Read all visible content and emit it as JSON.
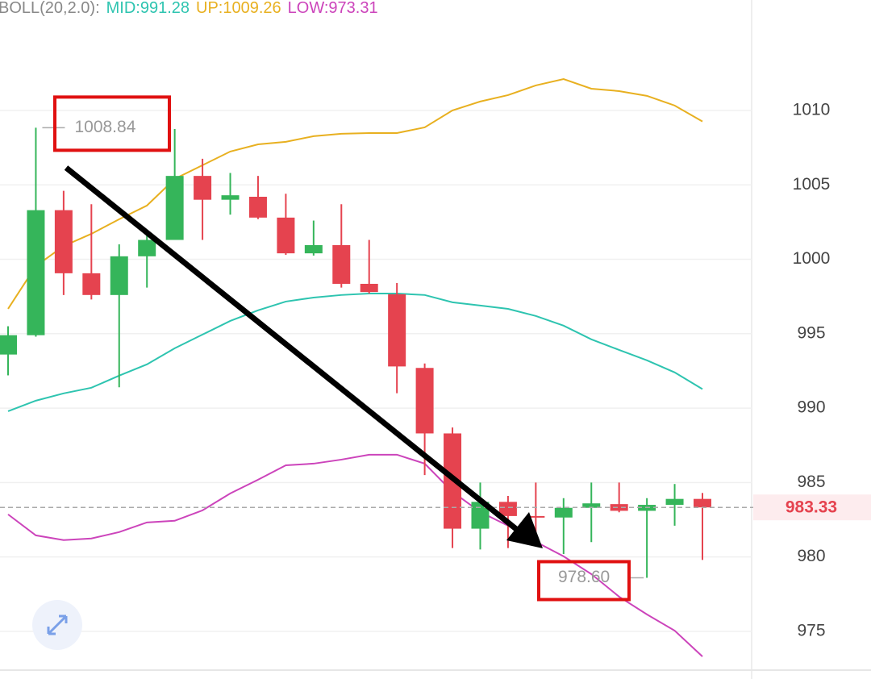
{
  "chart_data": {
    "type": "candlestick",
    "indicator": {
      "label": "BOLL(20,2.0):",
      "items": [
        {
          "text": "MID:991.28",
          "color": "#2ec4b0"
        },
        {
          "text": "UP:1009.26",
          "color": "#e8b020"
        },
        {
          "text": "LOW:973.31",
          "color": "#cc44bb"
        }
      ]
    },
    "categories": [
      null,
      null,
      null,
      null,
      null,
      null,
      null,
      null,
      null,
      null,
      null,
      null,
      null,
      null,
      null,
      null,
      null,
      null,
      null,
      null,
      null,
      null,
      null,
      null,
      null,
      null
    ],
    "open": [
      993.6,
      994.9,
      1003.3,
      999.06,
      997.6,
      1000.2,
      1001.3,
      1005.6,
      1004.0,
      1004.2,
      1002.8,
      1000.4,
      1000.95,
      998.35,
      997.65,
      992.7,
      988.3,
      981.9,
      983.7,
      982.75,
      982.65,
      983.3,
      983.55,
      983.1,
      983.5,
      983.9
    ],
    "high": [
      995.5,
      1008.84,
      1004.6,
      1003.7,
      1001.0,
      1002.0,
      1008.75,
      1006.75,
      1005.8,
      1005.6,
      1004.4,
      1002.6,
      1003.7,
      1001.3,
      998.4,
      993.0,
      988.7,
      985.0,
      984.1,
      985.0,
      983.95,
      985.0,
      985.0,
      983.95,
      984.9,
      984.3
    ],
    "low": [
      992.2,
      994.8,
      997.6,
      997.3,
      991.4,
      998.1,
      1001.3,
      1001.3,
      1003.0,
      1002.7,
      1000.3,
      1000.25,
      998.1,
      997.7,
      991.0,
      985.5,
      980.6,
      980.5,
      980.6,
      981.2,
      980.2,
      981.0,
      983.0,
      978.6,
      982.1,
      979.8
    ],
    "close": [
      994.9,
      1003.3,
      999.06,
      997.6,
      1000.2,
      1001.3,
      1005.6,
      1004.0,
      1004.3,
      1002.8,
      1000.4,
      1000.95,
      998.35,
      997.8,
      992.8,
      988.3,
      981.9,
      983.7,
      982.75,
      982.65,
      983.3,
      983.6,
      983.1,
      983.5,
      983.9,
      983.33
    ],
    "up_color": "#35b55a",
    "down_color": "#e5434f",
    "bands": [
      {
        "color": "#e8b020",
        "values": [
          996.67,
          999.54,
          1000.89,
          1001.71,
          1002.69,
          1003.61,
          1005.4,
          1006.32,
          1007.24,
          1007.72,
          1007.89,
          1008.27,
          1008.43,
          1008.48,
          1008.48,
          1008.86,
          1010.0,
          1010.6,
          1011.03,
          1011.68,
          1012.11,
          1011.46,
          1011.3,
          1010.98,
          1010.33,
          1009.26
        ]
      },
      {
        "color": "#2ec4b0",
        "values": [
          989.79,
          990.5,
          990.99,
          991.37,
          992.18,
          992.94,
          994.02,
          994.94,
          995.86,
          996.57,
          997.16,
          997.43,
          997.6,
          997.7,
          997.7,
          997.6,
          997.11,
          996.89,
          996.67,
          996.19,
          995.54,
          994.62,
          993.91,
          993.21,
          992.4,
          991.28
        ]
      },
      {
        "color": "#cc44bb",
        "values": [
          982.86,
          981.45,
          981.13,
          981.24,
          981.67,
          982.32,
          982.43,
          983.13,
          984.27,
          985.19,
          986.16,
          986.27,
          986.54,
          986.87,
          986.87,
          986.27,
          984.38,
          983.02,
          982.1,
          981.02,
          980.04,
          978.85,
          977.33,
          976.14,
          975.05,
          973.31
        ]
      }
    ],
    "ylim": [
      972.45,
      1017.42
    ],
    "yticks": [
      975,
      980,
      985,
      990,
      995,
      1000,
      1005,
      1010
    ],
    "grid": true,
    "annotations": [
      {
        "text": "1008.84",
        "value": 1008.84,
        "index": 1
      },
      {
        "text": "978.60",
        "value": 978.6,
        "index": 23
      }
    ],
    "last_price": {
      "value": 983.33,
      "label": "983.33"
    }
  }
}
